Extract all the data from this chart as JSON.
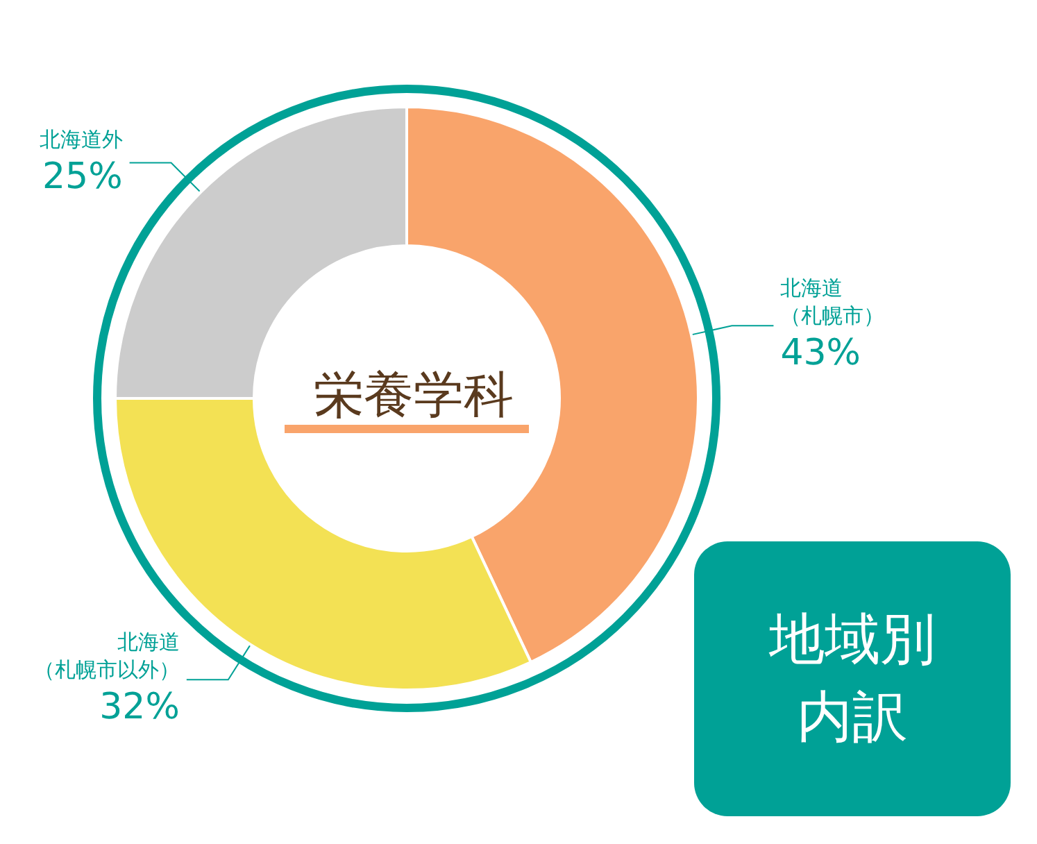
{
  "chart_data": {
    "type": "donut",
    "title": "栄養学科",
    "categories": [
      "北海道（札幌市）",
      "北海道（札幌市以外）",
      "北海道外"
    ],
    "values": [
      43,
      32,
      25
    ],
    "value_labels": [
      "43%",
      "32%",
      "25%"
    ],
    "colors": [
      "#f9a46b",
      "#f3e154",
      "#cccccc"
    ],
    "annotations": [
      "地域別内訳"
    ],
    "legend": false
  }
}
